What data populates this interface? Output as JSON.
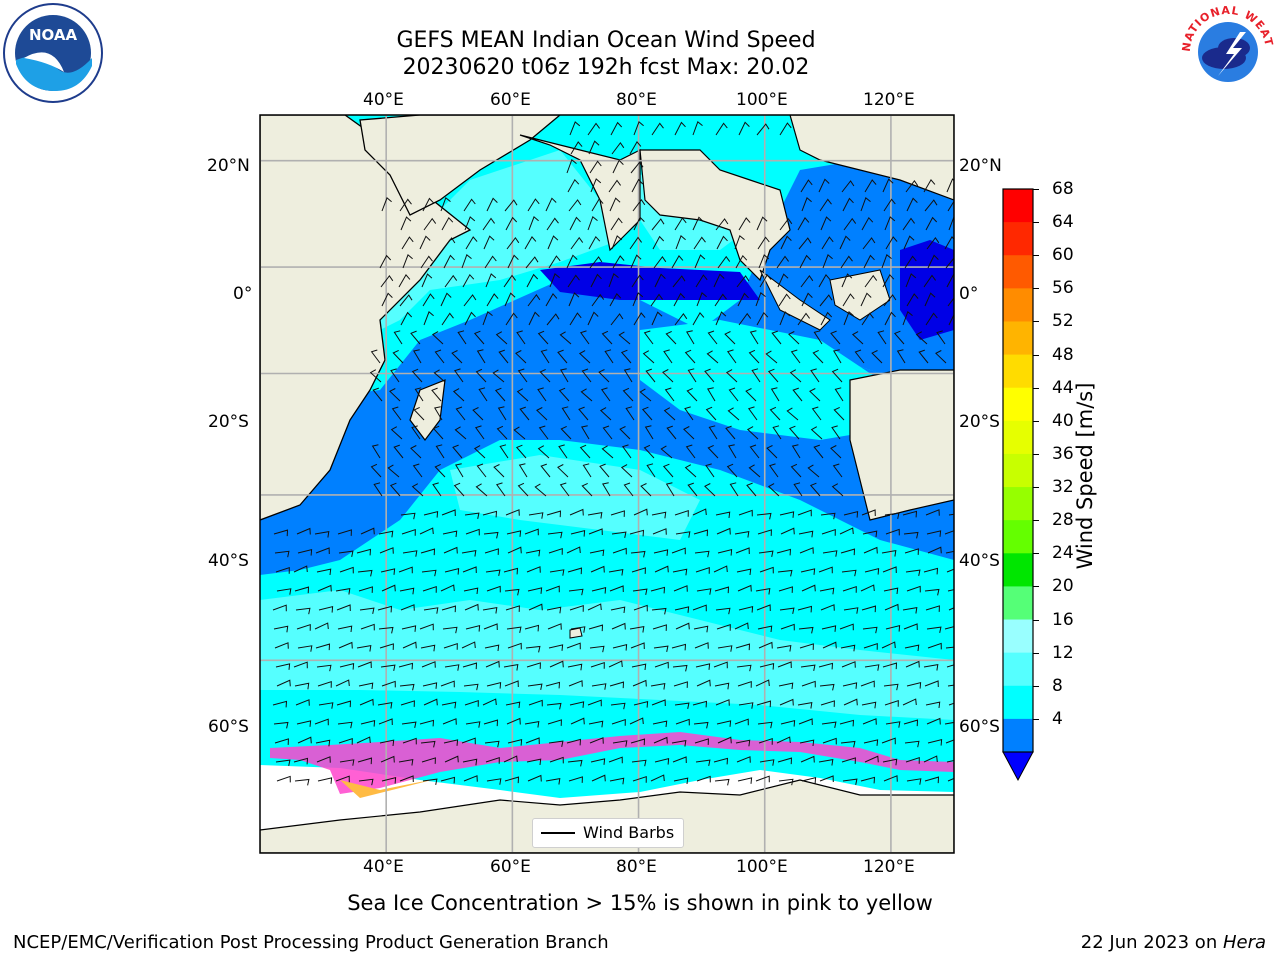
{
  "title": {
    "line1": "GEFS MEAN Indian Ocean Wind Speed",
    "line2": "20230620 t06z 192h fcst   Max: 20.02"
  },
  "map": {
    "lon_labels": [
      "40°E",
      "60°E",
      "80°E",
      "100°E",
      "120°E"
    ],
    "lon_values": [
      40,
      60,
      80,
      100,
      120
    ],
    "lat_labels": [
      "20°N",
      "0°",
      "20°S",
      "40°S",
      "60°S"
    ],
    "lat_values": [
      20,
      0,
      -20,
      -40,
      -60
    ],
    "extent": {
      "lon_min": 20,
      "lon_max": 130,
      "lat_min": -74,
      "lat_max": 28
    },
    "legend_label": "Wind Barbs",
    "land_color": "#eeeede",
    "grid_color": "#b0b0b0"
  },
  "colorbar": {
    "label": "Wind Speed [m/s]",
    "ticks": [
      "68",
      "64",
      "60",
      "56",
      "52",
      "48",
      "44",
      "40",
      "36",
      "32",
      "28",
      "24",
      "20",
      "16",
      "12",
      "8",
      "4"
    ],
    "colors": [
      "#ff0000",
      "#ff2800",
      "#ff5a00",
      "#ff8c00",
      "#ffb400",
      "#ffdc00",
      "#ffff00",
      "#e6ff00",
      "#c8ff00",
      "#96ff00",
      "#64ff00",
      "#00e600",
      "#55ff77",
      "#99ffff",
      "#55ffff",
      "#00ffff",
      "#0080ff"
    ],
    "under_color": "#0000ff"
  },
  "footer": {
    "caption": "Sea Ice Concentration > 15% is shown in pink to yellow",
    "left": "NCEP/EMC/Verification Post Processing Product Generation Branch",
    "right_date": "22 Jun 2023 on ",
    "right_host": "Hera"
  },
  "logos": {
    "noaa": "NOAA",
    "nws": "NATIONAL WEATHER SERVICE"
  }
}
